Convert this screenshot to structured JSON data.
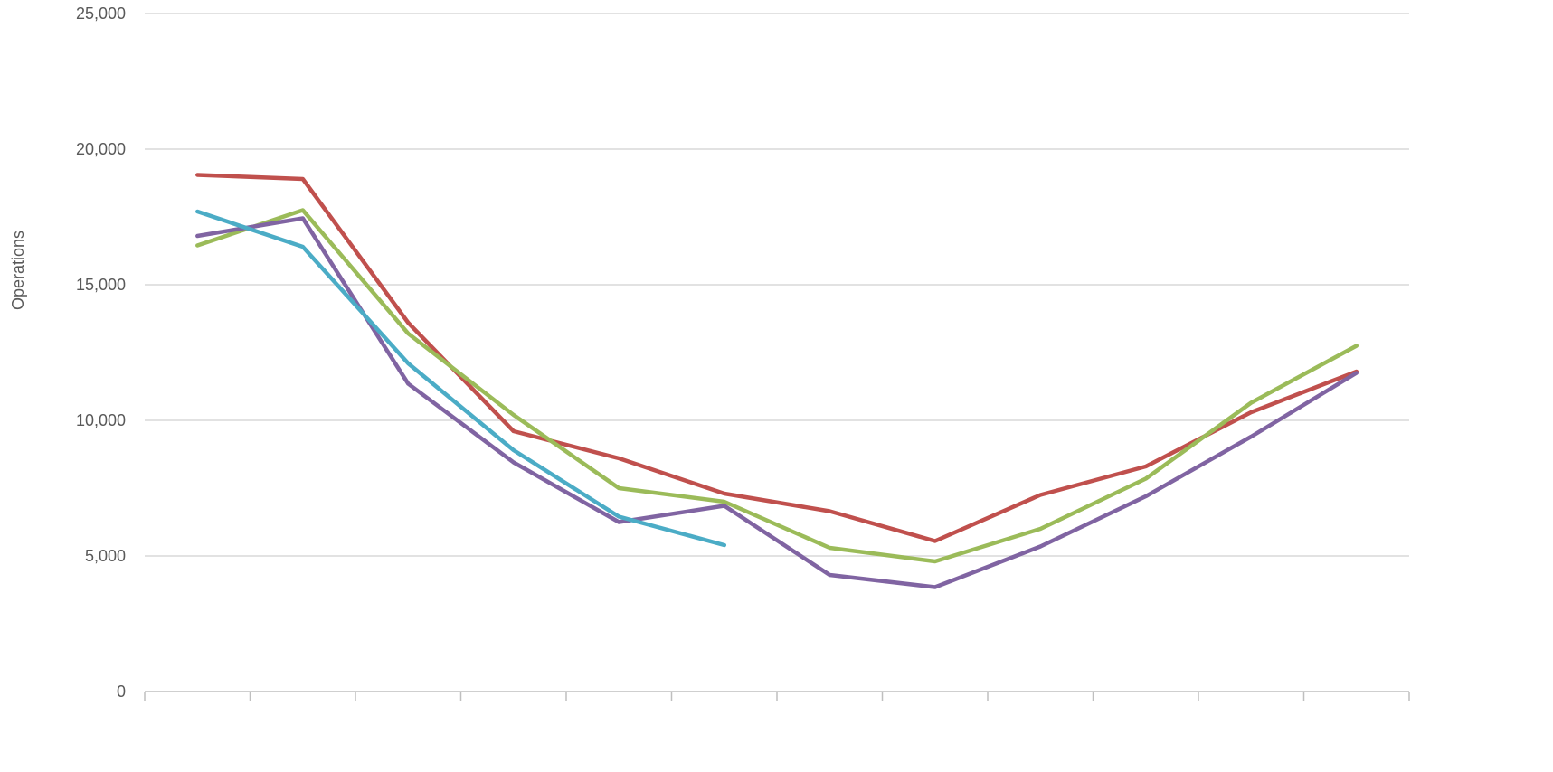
{
  "chart_data": {
    "type": "line",
    "title": "",
    "xlabel": "",
    "ylabel": "Operations",
    "ylim": [
      0,
      25000
    ],
    "yticks": [
      0,
      5000,
      10000,
      15000,
      20000,
      25000
    ],
    "ytick_labels": [
      "0",
      "5,000",
      "10,000",
      "15,000",
      "20,000",
      "25,000"
    ],
    "grid": true,
    "categories": [
      "",
      "",
      "",
      "",
      "",
      "",
      "",
      "",
      "",
      "",
      "",
      ""
    ],
    "series": [
      {
        "color": "#c0504d",
        "values": [
          19050,
          18900,
          13600,
          9600,
          8600,
          7300,
          6650,
          5550,
          7250,
          8300,
          10300,
          11800
        ]
      },
      {
        "color": "#9bbb59",
        "values": [
          16450,
          17750,
          13200,
          10200,
          7500,
          7000,
          5300,
          4800,
          6000,
          7850,
          10650,
          12750
        ]
      },
      {
        "color": "#8064a2",
        "values": [
          16800,
          17450,
          11350,
          8450,
          6250,
          6850,
          4300,
          3850,
          5350,
          7200,
          9400,
          11750
        ]
      },
      {
        "color": "#4bacc6",
        "values": [
          17700,
          16400,
          12100,
          8900,
          6450,
          5400,
          null,
          null,
          null,
          null,
          null,
          null
        ]
      }
    ]
  }
}
